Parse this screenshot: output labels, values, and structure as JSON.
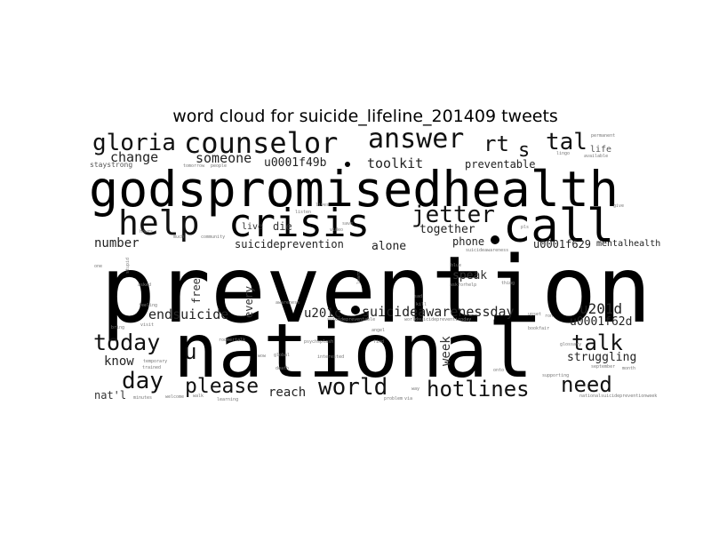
{
  "title": "word cloud for suicide_lifeline_201409 tweets",
  "background_color": "#ffffff",
  "words": [
    {
      "text": "prevention",
      "color": "#000000"
    },
    {
      "text": "national",
      "color": "#000000"
    },
    {
      "text": "godspromisedhealth",
      "color": "#000000"
    },
    {
      "text": "crisis",
      "color": "#000000"
    },
    {
      "text": "call",
      "color": "#000000"
    },
    {
      "text": "help",
      "color": "#111111"
    },
    {
      "text": "counselor",
      "color": "#111111"
    },
    {
      "text": "answer",
      "color": "#111111"
    },
    {
      "text": "gloria",
      "color": "#111111"
    },
    {
      "text": "tal",
      "color": "#111111"
    },
    {
      "text": "rt",
      "color": "#111111"
    },
    {
      "text": "s",
      "color": "#111111"
    },
    {
      "text": "jetter",
      "color": "#111111"
    },
    {
      "text": "hotlines",
      "color": "#111111"
    },
    {
      "text": "world",
      "color": "#111111"
    },
    {
      "text": "need",
      "color": "#111111"
    },
    {
      "text": "talk",
      "color": "#111111"
    },
    {
      "text": "today",
      "color": "#111111"
    },
    {
      "text": "day",
      "color": "#111111"
    },
    {
      "text": "please",
      "color": "#111111"
    },
    {
      "text": "u",
      "color": "#111111"
    },
    {
      "text": "u201d",
      "color": "#222222"
    },
    {
      "text": "suicideawarenessday",
      "color": "#222222"
    },
    {
      "text": "change",
      "color": "#222222"
    },
    {
      "text": "someone",
      "color": "#222222"
    },
    {
      "text": "toolkit",
      "color": "#222222"
    },
    {
      "text": "u0001f49b",
      "color": "#222222"
    },
    {
      "text": "preventable",
      "color": "#222222"
    },
    {
      "text": "together",
      "color": "#222222"
    },
    {
      "text": "number",
      "color": "#222222"
    },
    {
      "text": "suicideprevention",
      "color": "#222222"
    },
    {
      "text": "alone",
      "color": "#222222"
    },
    {
      "text": "phone",
      "color": "#222222"
    },
    {
      "text": "u0001f629",
      "color": "#222222"
    },
    {
      "text": "mentalhealth",
      "color": "#222222"
    },
    {
      "text": "endsuicide",
      "color": "#222222"
    },
    {
      "text": "u201c",
      "color": "#222222"
    },
    {
      "text": "u0001f62d",
      "color": "#222222"
    },
    {
      "text": "struggling",
      "color": "#222222"
    },
    {
      "text": "know",
      "color": "#222222"
    },
    {
      "text": "reach",
      "color": "#222222"
    },
    {
      "text": "nat'l",
      "color": "#333333"
    },
    {
      "text": "speak",
      "color": "#333333"
    },
    {
      "text": "live",
      "color": "#333333"
    },
    {
      "text": "die",
      "color": "#333333"
    },
    {
      "text": "free",
      "color": "#333333"
    },
    {
      "text": "every",
      "color": "#333333"
    },
    {
      "text": "week",
      "color": "#333333"
    },
    {
      "text": "staystrong",
      "color": "#555555"
    },
    {
      "text": "life",
      "color": "#555555"
    },
    {
      "text": "available",
      "color": "#777777"
    },
    {
      "text": "permanent",
      "color": "#777777"
    },
    {
      "text": "lingo",
      "color": "#777777"
    },
    {
      "text": "give",
      "color": "#777777"
    },
    {
      "text": "tomorrow",
      "color": "#777777"
    },
    {
      "text": "people",
      "color": "#777777"
    },
    {
      "text": "hours",
      "color": "#777777"
    },
    {
      "text": "much",
      "color": "#777777"
    },
    {
      "text": "community",
      "color": "#777777"
    },
    {
      "text": "asked",
      "color": "#777777"
    },
    {
      "text": "one",
      "color": "#777777"
    },
    {
      "text": "feeling",
      "color": "#777777"
    },
    {
      "text": "bring",
      "color": "#777777"
    },
    {
      "text": "visit",
      "color": "#777777"
    },
    {
      "text": "temporary",
      "color": "#777777"
    },
    {
      "text": "trained",
      "color": "#777777"
    },
    {
      "text": "welcome",
      "color": "#777777"
    },
    {
      "text": "walk",
      "color": "#777777"
    },
    {
      "text": "minutes",
      "color": "#777777"
    },
    {
      "text": "learning",
      "color": "#777777"
    },
    {
      "text": "problem",
      "color": "#777777"
    },
    {
      "text": "death",
      "color": "#777777"
    },
    {
      "text": "global",
      "color": "#777777"
    },
    {
      "text": "psychsplash",
      "color": "#777777"
    },
    {
      "text": "interested",
      "color": "#777777"
    },
    {
      "text": "find",
      "color": "#777777"
    },
    {
      "text": "roomertalk",
      "color": "#777777"
    },
    {
      "text": "blue",
      "color": "#777777"
    },
    {
      "text": "askforhelp",
      "color": "#777777"
    },
    {
      "text": "thing",
      "color": "#777777"
    },
    {
      "text": "learn",
      "color": "#777777"
    },
    {
      "text": "sad",
      "color": "#777777"
    },
    {
      "text": "suicideawareness",
      "color": "#777777"
    },
    {
      "text": "awareness",
      "color": "#777777"
    },
    {
      "text": "suicidepreventable",
      "color": "#777777"
    },
    {
      "text": "worldsuicidepreventionday",
      "color": "#777777"
    },
    {
      "text": "bookfair",
      "color": "#777777"
    },
    {
      "text": "ron",
      "color": "#777777"
    },
    {
      "text": "glossary",
      "color": "#777777"
    },
    {
      "text": "supporting",
      "color": "#777777"
    },
    {
      "text": "september",
      "color": "#777777"
    },
    {
      "text": "month",
      "color": "#777777"
    },
    {
      "text": "nationalsuicidepreventionweek",
      "color": "#777777"
    },
    {
      "text": "way",
      "color": "#777777"
    },
    {
      "text": "angel",
      "color": "#777777"
    },
    {
      "text": "pls",
      "color": "#777777"
    },
    {
      "text": "stupid",
      "color": "#777777"
    },
    {
      "text": "video",
      "color": "#777777"
    },
    {
      "text": "lives",
      "color": "#777777"
    },
    {
      "text": "save",
      "color": "#777777"
    },
    {
      "text": "onto",
      "color": "#777777"
    },
    {
      "text": "wow",
      "color": "#777777"
    },
    {
      "text": "kill",
      "color": "#777777"
    },
    {
      "text": "upset",
      "color": "#777777"
    },
    {
      "text": "listen",
      "color": "#777777"
    },
    {
      "text": "via",
      "color": "#777777"
    }
  ]
}
